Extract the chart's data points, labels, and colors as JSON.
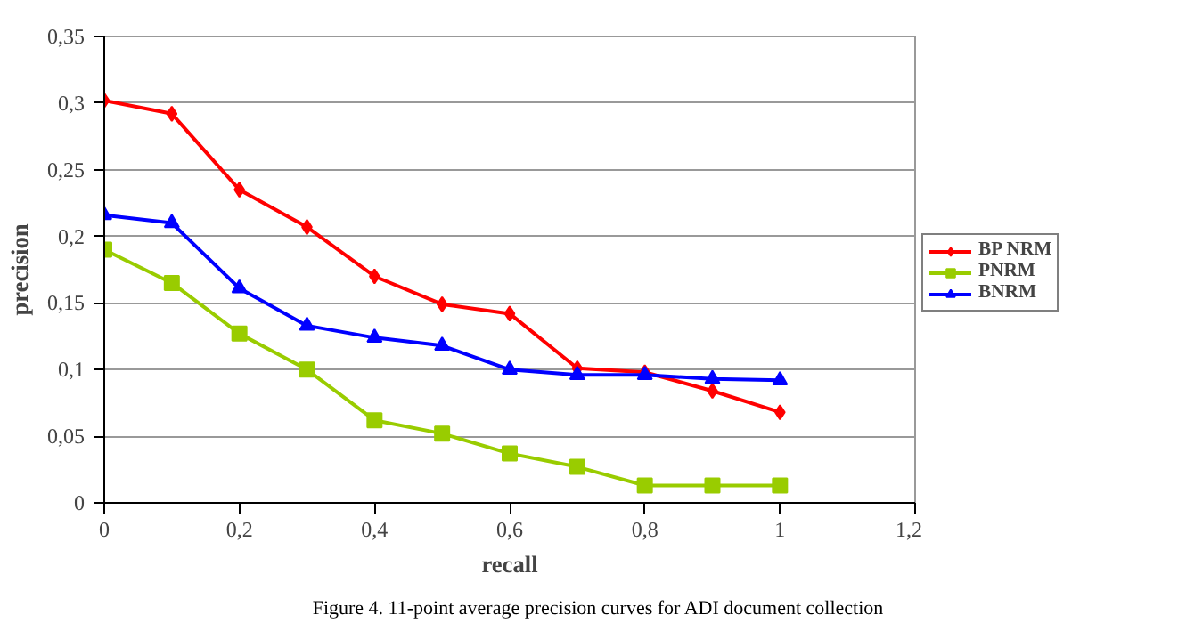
{
  "chart_data": {
    "type": "line",
    "xlabel": "recall",
    "ylabel": "precision",
    "annotations": [
      "Figure 4. 11-point average precision curves for ADI document collection"
    ],
    "x": [
      0,
      0.1,
      0.2,
      0.3,
      0.4,
      0.5,
      0.6,
      0.7,
      0.8,
      0.9,
      1
    ],
    "series": [
      {
        "name": "BP NRM",
        "color": "#ff0000",
        "marker": "diamond",
        "values": [
          0.302,
          0.292,
          0.235,
          0.207,
          0.17,
          0.149,
          0.142,
          0.101,
          0.098,
          0.084,
          0.068
        ]
      },
      {
        "name": "PNRM",
        "color": "#99cc00",
        "marker": "square",
        "values": [
          0.19,
          0.165,
          0.127,
          0.1,
          0.062,
          0.052,
          0.037,
          0.027,
          0.013,
          0.013,
          0.013
        ]
      },
      {
        "name": "BNRM",
        "color": "#0000ff",
        "marker": "triangle",
        "values": [
          0.216,
          0.21,
          0.161,
          0.133,
          0.124,
          0.118,
          0.1,
          0.096,
          0.096,
          0.093,
          0.092
        ]
      }
    ],
    "xlim": [
      0,
      1.2
    ],
    "xticks": [
      0,
      {
        "value": 0.2,
        "label": "0,2"
      },
      {
        "value": 0.4,
        "label": "0,4"
      },
      {
        "value": 0.6,
        "label": "0,6"
      },
      {
        "value": 0.8,
        "label": "0,8"
      },
      1,
      {
        "value": 1.2,
        "label": "1,2"
      }
    ],
    "ylim": [
      0,
      0.35
    ],
    "yticks": [
      0,
      {
        "value": 0.05,
        "label": "0,05"
      },
      {
        "value": 0.1,
        "label": "0,1"
      },
      {
        "value": 0.15,
        "label": "0,15"
      },
      {
        "value": 0.2,
        "label": "0,2"
      },
      {
        "value": 0.25,
        "label": "0,25"
      },
      {
        "value": 0.3,
        "label": "0,3"
      },
      {
        "value": 0.35,
        "label": "0,35"
      }
    ],
    "grid": "y",
    "legend": "right",
    "line_style": "solid"
  }
}
